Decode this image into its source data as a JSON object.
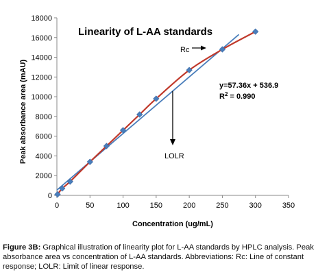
{
  "chart_data": {
    "type": "scatter",
    "title": "Linearity of L-AA standards",
    "xlabel": "Concentration (ug/mL)",
    "ylabel": "Peak absorbance area (mAU)",
    "xlim": [
      0,
      350
    ],
    "ylim": [
      0,
      18000
    ],
    "x_ticks": [
      "0",
      "50",
      "100",
      "150",
      "200",
      "250",
      "300",
      "350"
    ],
    "y_ticks": [
      "0",
      "2000",
      "4000",
      "6000",
      "8000",
      "10000",
      "12000",
      "14000",
      "16000",
      "18000"
    ],
    "grid": false,
    "series": [
      {
        "x": [
          1,
          8,
          20,
          50,
          75,
          100,
          125,
          150,
          200,
          250,
          300
        ],
        "y": [
          100,
          700,
          1400,
          3400,
          5000,
          6600,
          8200,
          9800,
          12700,
          14800,
          16600
        ]
      }
    ],
    "fit_line": {
      "slope": 57.36,
      "intercept": 536.9,
      "x_end": 275
    },
    "curve_color": "#c0392b",
    "fit_color": "#4a7ebb",
    "marker_color": "#4a7ebb",
    "annotations": {
      "equation": "y=57.36x + 536.9",
      "r2_label": "R",
      "r2_sup": "2",
      "r2_value": " = 0.990",
      "rc_label": "Rc",
      "lolr_label": "LOLR",
      "lolr_x": 175
    }
  },
  "caption": {
    "label": "Figure 3B:",
    "text": " Graphical illustration of linearity plot for L-AA standards by HPLC analysis. Peak absorbance area vs concentration of L-AA standards. Abbreviations: Rc: Line of constant response; LOLR: Limit of linear response."
  }
}
